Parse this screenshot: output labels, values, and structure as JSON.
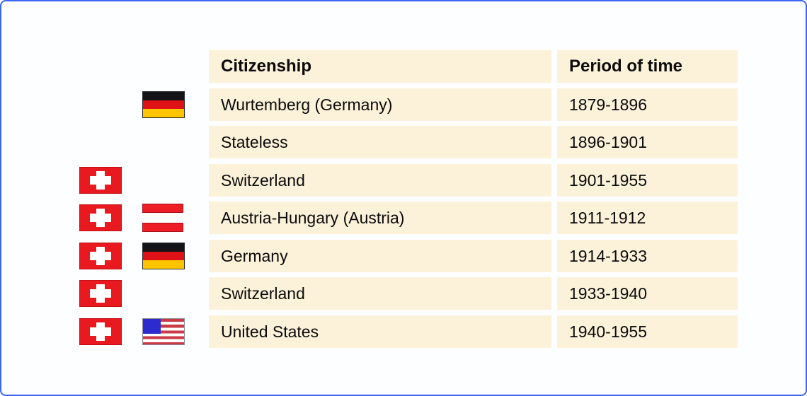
{
  "frame": {
    "border_color": "#3a66f3",
    "background_color": "#fdfeff"
  },
  "table": {
    "header": {
      "citizenship": "Citizenship",
      "period": "Period of time"
    },
    "rows": [
      {
        "citizenship": "Wurtemberg (Germany)",
        "period": "1879-1896",
        "flag_left": null,
        "flag_right": "germany"
      },
      {
        "citizenship": "Stateless",
        "period": "1896-1901",
        "flag_left": null,
        "flag_right": null
      },
      {
        "citizenship": "Switzerland",
        "period": "1901-1955",
        "flag_left": "swiss",
        "flag_right": null
      },
      {
        "citizenship": "Austria-Hungary (Austria)",
        "period": "1911-1912",
        "flag_left": "swiss",
        "flag_right": "austria"
      },
      {
        "citizenship": "Germany",
        "period": "1914-1933",
        "flag_left": "swiss",
        "flag_right": "germany"
      },
      {
        "citizenship": "Switzerland",
        "period": "1933-1940",
        "flag_left": "swiss",
        "flag_right": null
      },
      {
        "citizenship": "United States",
        "period": "1940-1955",
        "flag_left": "swiss",
        "flag_right": "usa"
      }
    ]
  },
  "colors": {
    "cell_background": "#fcf2da",
    "text": "#0b0b0b",
    "swiss_red": "#e8191f",
    "german_black": "#141317",
    "german_red": "#dd1116",
    "german_gold": "#fcc500",
    "austria_red": "#ee1c25",
    "usa_blue": "#2b2bcf",
    "usa_red": "#c93a46"
  }
}
